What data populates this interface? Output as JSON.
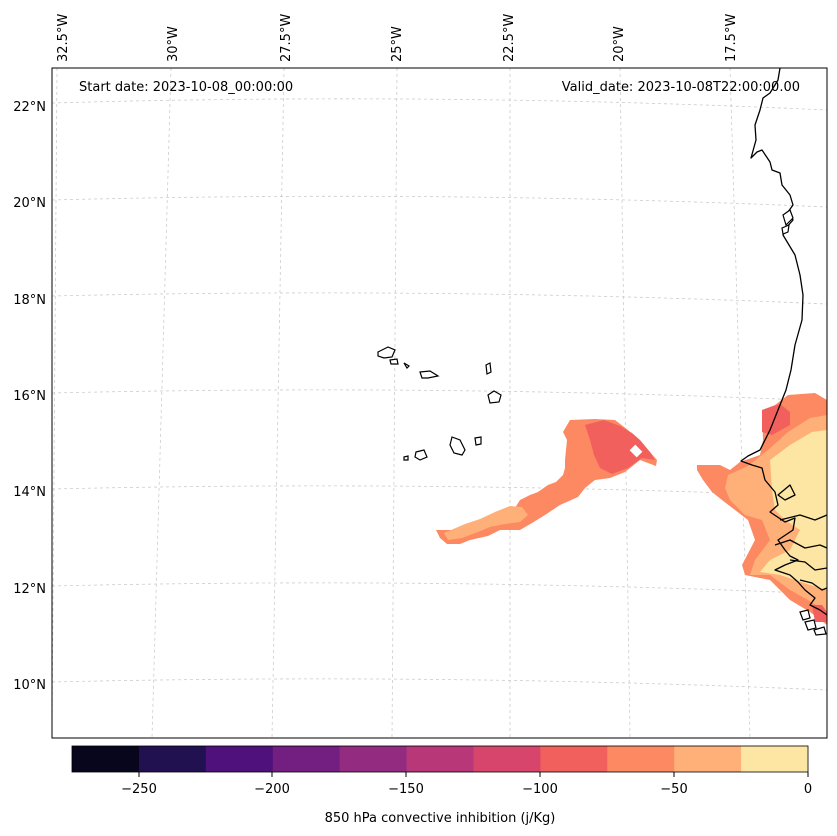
{
  "header": {
    "start_date": "Start date: 2023-10-08_00:00:00",
    "valid_date": "Valid_date: 2023-10-08T22:00:00.00"
  },
  "lon_labels": [
    "32.5°W",
    "30°W",
    "27.5°W",
    "25°W",
    "22.5°W",
    "20°W",
    "17.5°W"
  ],
  "lat_labels": [
    "22°N",
    "20°N",
    "18°N",
    "16°N",
    "14°N",
    "12°N",
    "10°N"
  ],
  "colorbar": {
    "label": "850 hPa convective inhibition (j/Kg)",
    "ticks": [
      "−250",
      "−200",
      "−150",
      "−100",
      "−50",
      "0"
    ],
    "colors": [
      "#07061c",
      "#221150",
      "#4f117b",
      "#721f81",
      "#932b80",
      "#b73779",
      "#d8456c",
      "#f1605d",
      "#fc8961",
      "#feb078",
      "#fde6a4"
    ],
    "levels": [
      -275,
      -250,
      -225,
      -200,
      -175,
      -150,
      -125,
      -100,
      -75,
      -50,
      -25,
      0
    ]
  },
  "palette": {
    "level_-75_-50": "#fc8961",
    "level_-100_-75": "#f1605d",
    "level_-50_-25": "#feb078",
    "level_-25_0": "#fde6a4"
  }
}
